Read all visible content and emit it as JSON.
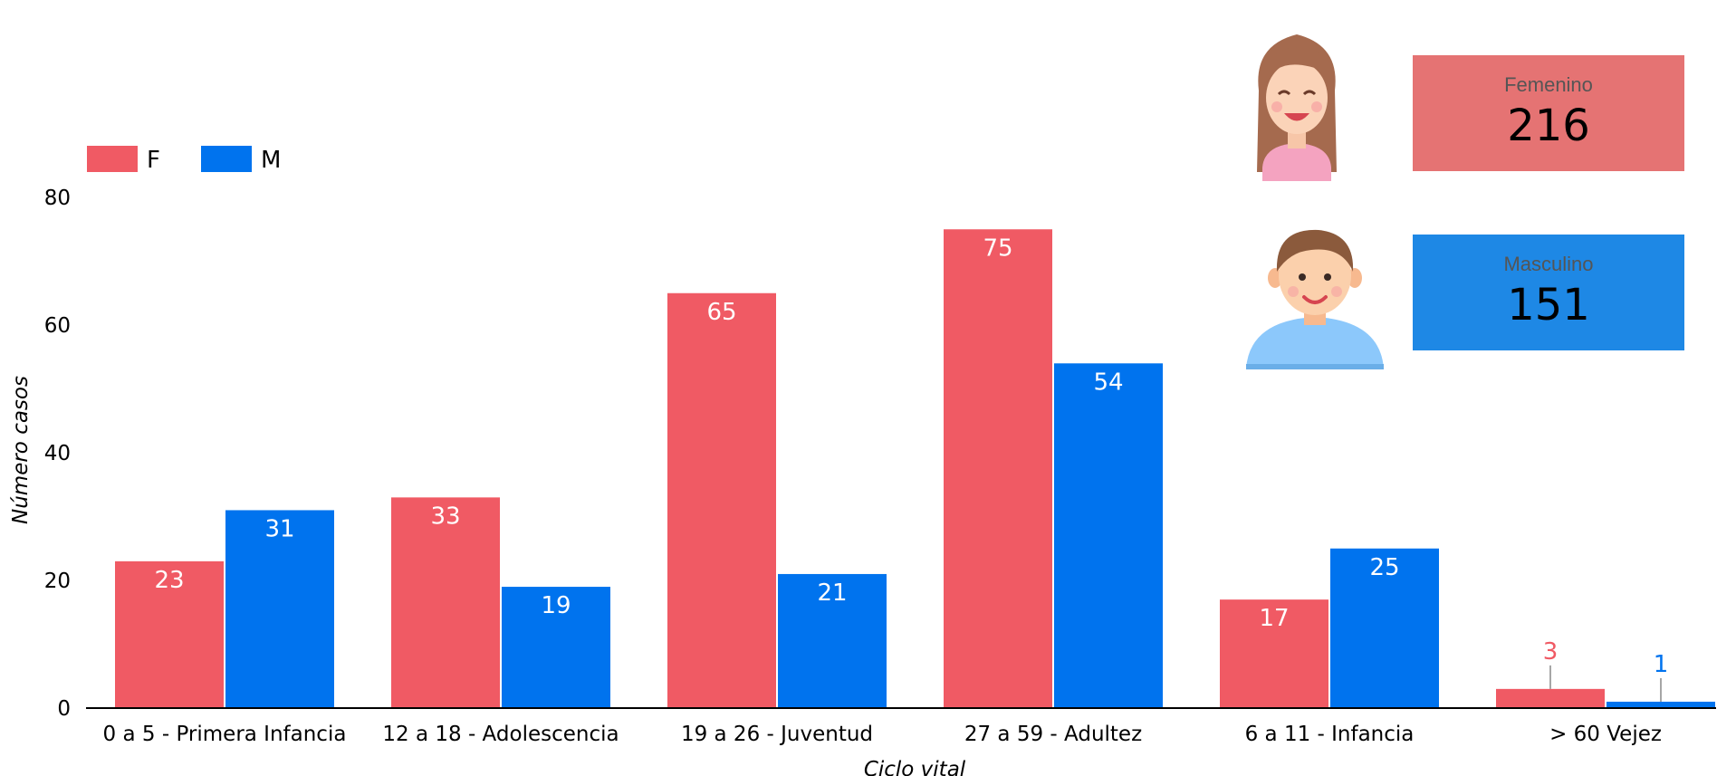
{
  "chart_data": {
    "type": "bar",
    "categories": [
      "0 a 5 - Primera Infancia",
      "12 a 18 - Adolescencia",
      "19 a 26 - Juventud",
      "27 a 59 - Adultez",
      "6 a 11 - Infancia",
      "> 60 Vejez"
    ],
    "series": [
      {
        "name": "F",
        "values": [
          23,
          33,
          65,
          75,
          17,
          3
        ]
      },
      {
        "name": "M",
        "values": [
          31,
          19,
          21,
          54,
          25,
          1
        ]
      }
    ],
    "xlabel": "Ciclo vital",
    "ylabel": "Número casos",
    "ylim": [
      0,
      80
    ],
    "yticks": [
      0,
      20,
      40,
      60,
      80
    ],
    "grid": false,
    "legend": "top-left",
    "colors": {
      "F": "#f05a64",
      "M": "#0073ee"
    }
  },
  "summary": {
    "female": {
      "label": "Femenino",
      "value": "216",
      "color": "#e57373",
      "icon": "woman-avatar-icon"
    },
    "male": {
      "label": "Masculino",
      "value": "151",
      "color": "#1e88e5",
      "icon": "man-avatar-icon"
    }
  }
}
